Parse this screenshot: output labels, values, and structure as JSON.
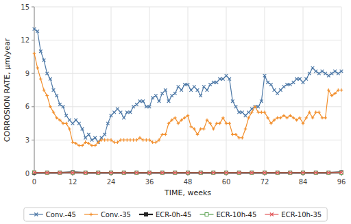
{
  "chart_data": {
    "type": "line",
    "xlabel": "TIME, weeks",
    "ylabel": "CORROSION RATE, μm/year",
    "xlim": [
      0,
      96
    ],
    "ylim": [
      0,
      15
    ],
    "xticks": [
      0,
      12,
      24,
      36,
      48,
      60,
      72,
      84,
      96
    ],
    "yticks": [
      0,
      3,
      6,
      9,
      12,
      15
    ],
    "grid": true,
    "legend": "bottom",
    "series": [
      {
        "name": "Conv.-45",
        "color": "#4e79a7",
        "marker": "x",
        "line_style": "solid",
        "x": [
          0,
          1,
          2,
          3,
          4,
          5,
          6,
          7,
          8,
          9,
          10,
          11,
          12,
          13,
          14,
          15,
          16,
          17,
          18,
          19,
          20,
          21,
          22,
          23,
          24,
          25,
          26,
          27,
          28,
          29,
          30,
          31,
          32,
          33,
          34,
          35,
          36,
          37,
          38,
          39,
          40,
          41,
          42,
          43,
          44,
          45,
          46,
          47,
          48,
          49,
          50,
          51,
          52,
          53,
          54,
          55,
          56,
          57,
          58,
          59,
          60,
          61,
          62,
          63,
          64,
          65,
          66,
          67,
          68,
          69,
          70,
          71,
          72,
          73,
          74,
          75,
          76,
          77,
          78,
          79,
          80,
          81,
          82,
          83,
          84,
          85,
          86,
          87,
          88,
          89,
          90,
          91,
          92,
          93,
          94,
          95,
          96
        ],
        "values": [
          13.0,
          12.8,
          11.0,
          10.2,
          9.0,
          8.5,
          7.5,
          7.0,
          6.2,
          6.0,
          5.2,
          4.8,
          4.5,
          4.8,
          4.5,
          4.0,
          3.2,
          3.5,
          3.0,
          3.2,
          2.8,
          3.2,
          3.5,
          4.5,
          5.2,
          5.5,
          5.8,
          5.5,
          5.0,
          5.5,
          5.5,
          6.0,
          6.2,
          6.5,
          6.5,
          6.0,
          6.0,
          6.8,
          7.0,
          6.5,
          7.2,
          7.5,
          6.5,
          7.0,
          7.2,
          7.8,
          7.5,
          8.0,
          8.0,
          7.5,
          7.8,
          7.5,
          7.0,
          7.8,
          7.5,
          8.0,
          8.2,
          8.2,
          8.5,
          8.5,
          8.8,
          8.5,
          6.5,
          6.0,
          5.5,
          5.5,
          5.2,
          5.5,
          5.8,
          6.0,
          6.0,
          6.5,
          8.8,
          8.2,
          8.0,
          7.5,
          7.2,
          7.5,
          7.8,
          8.0,
          8.0,
          8.2,
          8.5,
          8.5,
          8.2,
          8.5,
          9.0,
          9.5,
          9.2,
          9.0,
          9.2,
          9.0,
          8.8,
          9.0,
          9.2,
          9.0,
          9.2
        ]
      },
      {
        "name": "Conv.-35",
        "color": "#f28e2b",
        "marker": "plus",
        "line_style": "solid",
        "x": [
          0,
          1,
          2,
          3,
          4,
          5,
          6,
          7,
          8,
          9,
          10,
          11,
          12,
          13,
          14,
          15,
          16,
          17,
          18,
          19,
          20,
          21,
          22,
          23,
          24,
          25,
          26,
          27,
          28,
          29,
          30,
          31,
          32,
          33,
          34,
          35,
          36,
          37,
          38,
          39,
          40,
          41,
          42,
          43,
          44,
          45,
          46,
          47,
          48,
          49,
          50,
          51,
          52,
          53,
          54,
          55,
          56,
          57,
          58,
          59,
          60,
          61,
          62,
          63,
          64,
          65,
          66,
          67,
          68,
          69,
          70,
          71,
          72,
          73,
          74,
          75,
          76,
          77,
          78,
          79,
          80,
          81,
          82,
          83,
          84,
          85,
          86,
          87,
          88,
          89,
          90,
          91,
          92,
          93,
          94,
          95,
          96
        ],
        "values": [
          10.8,
          9.5,
          8.5,
          7.5,
          7.0,
          6.0,
          5.5,
          5.0,
          4.8,
          4.5,
          4.5,
          4.0,
          2.8,
          2.7,
          2.5,
          2.5,
          2.8,
          2.7,
          2.5,
          2.5,
          2.8,
          3.0,
          3.0,
          3.0,
          3.0,
          2.8,
          2.8,
          3.0,
          3.0,
          3.0,
          3.0,
          3.0,
          3.0,
          3.2,
          3.0,
          3.0,
          3.0,
          2.8,
          2.8,
          3.0,
          3.5,
          3.5,
          4.5,
          4.8,
          5.0,
          4.5,
          4.8,
          5.0,
          5.2,
          4.2,
          4.0,
          3.5,
          4.0,
          4.0,
          4.8,
          4.5,
          4.0,
          4.5,
          4.5,
          5.0,
          4.5,
          4.5,
          3.5,
          3.5,
          3.2,
          3.2,
          4.0,
          5.0,
          5.5,
          6.0,
          5.5,
          5.5,
          5.5,
          5.0,
          4.5,
          4.8,
          5.0,
          5.0,
          5.2,
          5.0,
          5.2,
          5.0,
          4.8,
          5.0,
          4.5,
          5.0,
          5.5,
          5.0,
          5.5,
          5.5,
          5.0,
          5.0,
          7.5,
          7.0,
          7.2,
          7.5,
          7.5
        ]
      },
      {
        "name": "ECR-0h-45",
        "color": "#222222",
        "marker": "square",
        "line_style": "solid",
        "x": [
          0,
          4,
          8,
          12,
          16,
          20,
          24,
          28,
          32,
          36,
          40,
          44,
          48,
          52,
          56,
          60,
          64,
          68,
          72,
          76,
          80,
          84,
          88,
          92,
          96
        ],
        "values": [
          0.05,
          0.05,
          0.05,
          0.1,
          0.05,
          0.05,
          0.05,
          0.05,
          0.05,
          0.05,
          0.05,
          0.05,
          0.05,
          0.05,
          0.05,
          0.05,
          0.05,
          0.05,
          0.05,
          0.05,
          0.05,
          0.05,
          0.05,
          0.05,
          0.1
        ]
      },
      {
        "name": "ECR-10h-45",
        "color": "#59a14f",
        "marker": "square-open",
        "line_style": "solid",
        "x": [
          0,
          4,
          8,
          12,
          16,
          20,
          24,
          28,
          32,
          36,
          40,
          44,
          48,
          52,
          56,
          60,
          64,
          68,
          72,
          76,
          80,
          84,
          88,
          92,
          96
        ],
        "values": [
          0.1,
          0.05,
          0.05,
          0.05,
          0.05,
          0.05,
          0.05,
          0.05,
          0.05,
          0.05,
          0.05,
          0.05,
          0.05,
          0.05,
          0.05,
          0.05,
          0.05,
          0.05,
          0.05,
          0.05,
          0.05,
          0.05,
          0.05,
          0.05,
          0.05
        ]
      },
      {
        "name": "ECR-10h-35",
        "color": "#e15759",
        "marker": "x",
        "line_style": "solid",
        "x": [
          0,
          4,
          8,
          12,
          16,
          20,
          24,
          28,
          32,
          36,
          40,
          44,
          48,
          52,
          56,
          60,
          64,
          68,
          72,
          76,
          80,
          84,
          88,
          92,
          96
        ],
        "values": [
          0.08,
          0.05,
          0.05,
          0.05,
          0.05,
          0.05,
          0.05,
          0.05,
          0.05,
          0.05,
          0.05,
          0.05,
          0.05,
          0.05,
          0.05,
          0.05,
          0.05,
          0.05,
          0.05,
          0.05,
          0.05,
          0.05,
          0.05,
          0.05,
          0.08
        ]
      }
    ]
  }
}
